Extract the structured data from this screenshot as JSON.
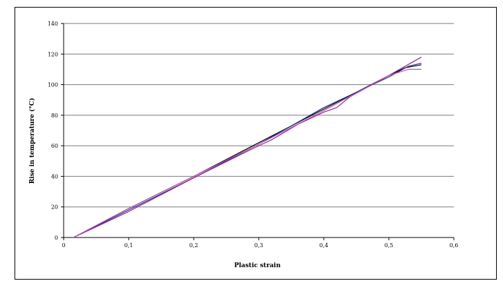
{
  "chart_data": {
    "type": "line",
    "title": "",
    "xlabel": "Plastic strain",
    "ylabel": "Rise in temperature (°C)",
    "xlim": [
      0,
      0.6
    ],
    "ylim": [
      0,
      140
    ],
    "x_ticks": [
      "0",
      "0,1",
      "0,2",
      "0,3",
      "0,4",
      "0,5",
      "0,6"
    ],
    "y_ticks": [
      "0",
      "20",
      "40",
      "60",
      "80",
      "100",
      "120",
      "140"
    ],
    "grid": "horizontal",
    "legend": "none",
    "series": [
      {
        "color": "#000000",
        "x": [
          0.015,
          0.1,
          0.2,
          0.3,
          0.4,
          0.5,
          0.525,
          0.55
        ],
        "y": [
          0,
          19,
          40,
          62,
          84,
          106,
          111,
          113
        ]
      },
      {
        "color": "#1f2a80",
        "x": [
          0.015,
          0.1,
          0.2,
          0.3,
          0.4,
          0.5,
          0.53,
          0.55
        ],
        "y": [
          0,
          18,
          39,
          61,
          85,
          105,
          112,
          114
        ]
      },
      {
        "color": "#8a2a8a",
        "x": [
          0.015,
          0.1,
          0.2,
          0.29,
          0.32,
          0.36,
          0.4,
          0.42,
          0.44,
          0.5,
          0.55
        ],
        "y": [
          0,
          17,
          39,
          58,
          64,
          74,
          82,
          85,
          92,
          106,
          118
        ]
      },
      {
        "color": "#c24fc2",
        "x": [
          0.015,
          0.1,
          0.2,
          0.3,
          0.4,
          0.5,
          0.53,
          0.55
        ],
        "y": [
          0,
          19,
          40,
          61,
          83,
          106,
          110,
          110
        ]
      }
    ]
  }
}
